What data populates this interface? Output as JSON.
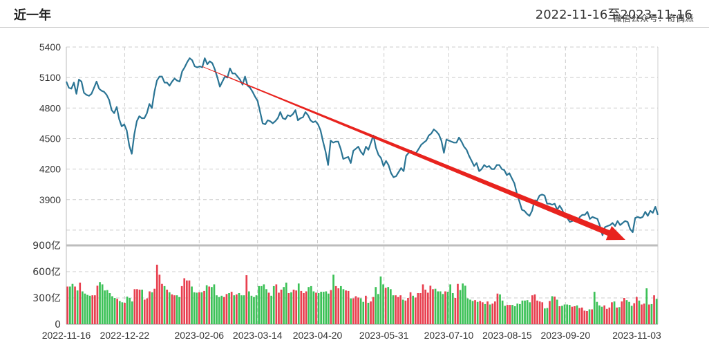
{
  "header": {
    "title": "近一年",
    "date_range": "2022-11-16至2023-11-16",
    "watermark": "微信公众号：奇偶派"
  },
  "colors": {
    "price_line": "#2a7494",
    "trend_arrow": "#e8231e",
    "volume_up": "#e8404f",
    "volume_down": "#3cc157",
    "grid": "#cccccc"
  },
  "chart_data": [
    {
      "type": "line",
      "title": "",
      "xlabel": "",
      "ylabel": "",
      "ylim": [
        3450,
        5400
      ],
      "grid": true,
      "y_ticks": [
        "5400",
        "5100",
        "4800",
        "4500",
        "4200",
        "3900"
      ],
      "x_ticks": [
        "2022-11-16",
        "2022-12-22",
        "2023-02-06",
        "2023-03-14",
        "2023-04-20",
        "2023-05-31",
        "2023-07-10",
        "2023-08-15",
        "2023-09-20",
        "2023-11-03"
      ],
      "x_range": [
        "2022-11-16",
        "2023-11-16"
      ],
      "series": [
        {
          "values": [
            5060,
            5000,
            4990,
            5050,
            4940,
            5080,
            5060,
            4950,
            4930,
            4920,
            4940,
            5000,
            5060,
            4990,
            4970,
            4960,
            4930,
            4880,
            4780,
            4750,
            4810,
            4690,
            4620,
            4640,
            4580,
            4430,
            4350,
            4540,
            4670,
            4720,
            4700,
            4700,
            4750,
            4840,
            4800,
            4960,
            5070,
            5110,
            5110,
            5050,
            5050,
            5020,
            5060,
            5090,
            5070,
            5060,
            5160,
            5200,
            5250,
            5290,
            5270,
            5210,
            5200,
            5210,
            5200,
            5290,
            5230,
            5260,
            5240,
            5180,
            5100,
            5010,
            5060,
            5110,
            5100,
            5190,
            5140,
            5140,
            5110,
            5080,
            5030,
            5110,
            5020,
            5000,
            4960,
            4910,
            4870,
            4760,
            4650,
            4640,
            4680,
            4670,
            4650,
            4670,
            4700,
            4760,
            4700,
            4690,
            4730,
            4720,
            4740,
            4780,
            4680,
            4700,
            4710,
            4760,
            4730,
            4680,
            4660,
            4670,
            4640,
            4580,
            4470,
            4370,
            4240,
            4480,
            4460,
            4470,
            4470,
            4400,
            4300,
            4310,
            4320,
            4260,
            4380,
            4400,
            4420,
            4370,
            4340,
            4420,
            4390,
            4460,
            4530,
            4410,
            4340,
            4310,
            4230,
            4280,
            4240,
            4160,
            4120,
            4130,
            4170,
            4210,
            4180,
            4330,
            4360,
            4380,
            4360,
            4360,
            4400,
            4440,
            4460,
            4480,
            4530,
            4550,
            4590,
            4570,
            4540,
            4480,
            4360,
            4490,
            4480,
            4470,
            4460,
            4460,
            4510,
            4470,
            4420,
            4390,
            4330,
            4280,
            4230,
            4260,
            4180,
            4200,
            4240,
            4220,
            4230,
            4200,
            4200,
            4240,
            4240,
            4200,
            4190,
            4140,
            4160,
            4110,
            4060,
            3960,
            3880,
            3800,
            3790,
            3760,
            3740,
            3790,
            3890,
            3890,
            3940,
            3950,
            3940,
            3860,
            3860,
            3850,
            3860,
            3800,
            3840,
            3800,
            3740,
            3720,
            3680,
            3690,
            3700,
            3680,
            3730,
            3750,
            3750,
            3780,
            3710,
            3730,
            3720,
            3710,
            3640,
            3550,
            3630,
            3640,
            3650,
            3670,
            3640,
            3690,
            3650,
            3670,
            3690,
            3680,
            3610,
            3580,
            3720,
            3730,
            3720,
            3730,
            3780,
            3740,
            3790,
            3770,
            3830,
            3750
          ]
        }
      ]
    },
    {
      "type": "bar",
      "title": "",
      "ylabel": "",
      "ylim": [
        0,
        900
      ],
      "y_ticks": [
        "900亿",
        "600亿",
        "300亿",
        "0"
      ],
      "grid": true,
      "series": [
        {
          "values": [
            430,
            430,
            460,
            430,
            385,
            475,
            375,
            350,
            335,
            325,
            330,
            330,
            440,
            480,
            455,
            385,
            390,
            355,
            320,
            300,
            290,
            265,
            250,
            245,
            315,
            300,
            260,
            400,
            400,
            395,
            395,
            280,
            295,
            375,
            365,
            405,
            680,
            565,
            460,
            435,
            395,
            365,
            340,
            330,
            330,
            310,
            435,
            525,
            500,
            500,
            430,
            365,
            360,
            365,
            365,
            380,
            445,
            430,
            425,
            455,
            330,
            310,
            325,
            310,
            345,
            355,
            370,
            330,
            340,
            355,
            330,
            330,
            560,
            375,
            325,
            310,
            330,
            435,
            435,
            455,
            400,
            360,
            325,
            435,
            455,
            360,
            395,
            425,
            475,
            355,
            365,
            395,
            385,
            465,
            380,
            355,
            375,
            425,
            435,
            375,
            360,
            355,
            370,
            370,
            375,
            350,
            390,
            565,
            435,
            410,
            435,
            400,
            385,
            380,
            295,
            295,
            320,
            305,
            295,
            255,
            325,
            245,
            260,
            310,
            425,
            345,
            545,
            455,
            415,
            425,
            400,
            330,
            330,
            310,
            330,
            280,
            270,
            300,
            365,
            325,
            305,
            355,
            355,
            455,
            395,
            360,
            440,
            400,
            405,
            375,
            375,
            345,
            375,
            370,
            455,
            355,
            300,
            460,
            390,
            465,
            440,
            295,
            280,
            265,
            275,
            255,
            265,
            250,
            230,
            260,
            225,
            235,
            260,
            350,
            340,
            270,
            210,
            220,
            220,
            220,
            205,
            235,
            230,
            270,
            270,
            275,
            250,
            330,
            340,
            270,
            260,
            250,
            180,
            185,
            265,
            320,
            315,
            280,
            205,
            210,
            225,
            225,
            220,
            200,
            205,
            215,
            185,
            190,
            155,
            150,
            170,
            170,
            370,
            255,
            215,
            200,
            215,
            175,
            190,
            250,
            260,
            190,
            195,
            260,
            300,
            275,
            255,
            210,
            240,
            310,
            270,
            225,
            235,
            410,
            225,
            230,
            330,
            290
          ]
        }
      ]
    }
  ]
}
